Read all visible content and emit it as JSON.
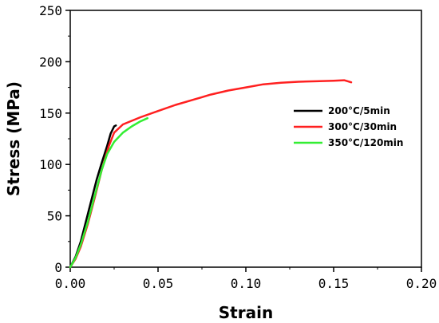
{
  "chart_data": {
    "type": "line",
    "title": "",
    "xlabel": "Strain",
    "ylabel": "Stress (MPa)",
    "xlim": [
      0,
      0.2
    ],
    "ylim": [
      0,
      250
    ],
    "x_ticks": [
      "0.00",
      "0.05",
      "0.10",
      "0.15",
      "0.20"
    ],
    "y_ticks": [
      "0",
      "50",
      "100",
      "150",
      "200",
      "250"
    ],
    "legend_position": "right",
    "grid": false,
    "series": [
      {
        "name": "200°C/5min",
        "color": "#000000",
        "points": [
          [
            0,
            0
          ],
          [
            0.003,
            10
          ],
          [
            0.006,
            25
          ],
          [
            0.009,
            45
          ],
          [
            0.012,
            65
          ],
          [
            0.015,
            85
          ],
          [
            0.018,
            102
          ],
          [
            0.021,
            118
          ],
          [
            0.023,
            130
          ],
          [
            0.025,
            137
          ],
          [
            0.026,
            138
          ]
        ]
      },
      {
        "name": "300°C/30min",
        "color": "#ff2020",
        "points": [
          [
            0,
            0
          ],
          [
            0.003,
            8
          ],
          [
            0.006,
            20
          ],
          [
            0.01,
            42
          ],
          [
            0.014,
            68
          ],
          [
            0.018,
            95
          ],
          [
            0.022,
            118
          ],
          [
            0.025,
            131
          ],
          [
            0.03,
            139
          ],
          [
            0.04,
            146
          ],
          [
            0.05,
            152
          ],
          [
            0.06,
            158
          ],
          [
            0.07,
            163
          ],
          [
            0.08,
            168
          ],
          [
            0.09,
            172
          ],
          [
            0.1,
            175
          ],
          [
            0.11,
            178
          ],
          [
            0.12,
            179.5
          ],
          [
            0.13,
            180.5
          ],
          [
            0.14,
            181
          ],
          [
            0.15,
            181.5
          ],
          [
            0.156,
            182
          ],
          [
            0.16,
            180
          ]
        ]
      },
      {
        "name": "350°C/120min",
        "color": "#33ee33",
        "points": [
          [
            0,
            0
          ],
          [
            0.003,
            9
          ],
          [
            0.006,
            22
          ],
          [
            0.01,
            44
          ],
          [
            0.014,
            70
          ],
          [
            0.018,
            95
          ],
          [
            0.021,
            110
          ],
          [
            0.025,
            122
          ],
          [
            0.03,
            131
          ],
          [
            0.035,
            137
          ],
          [
            0.04,
            142
          ],
          [
            0.044,
            145
          ]
        ]
      }
    ]
  }
}
